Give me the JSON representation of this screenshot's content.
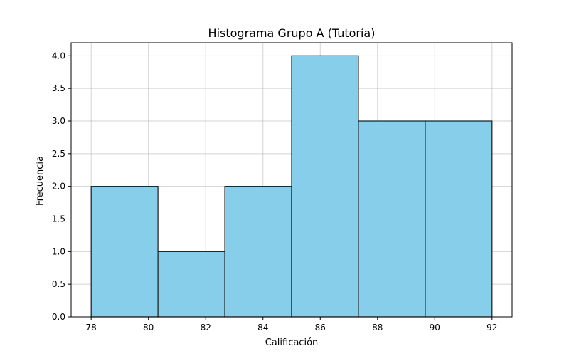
{
  "chart_data": {
    "type": "bar",
    "subtype": "histogram",
    "title": "Histograma Grupo A (Tutoría)",
    "xlabel": "Calificación",
    "ylabel": "Frecuencia",
    "bin_edges": [
      78,
      80.333,
      82.667,
      85,
      87.333,
      89.667,
      92
    ],
    "values": [
      2,
      1,
      2,
      4,
      3,
      3
    ],
    "xlim": [
      77.3,
      92.7
    ],
    "ylim": [
      0,
      4.2
    ],
    "x_ticks": [
      78,
      80,
      82,
      84,
      86,
      88,
      90,
      92
    ],
    "x_tick_labels": [
      "78",
      "80",
      "82",
      "84",
      "86",
      "88",
      "90",
      "92"
    ],
    "y_ticks": [
      0,
      0.5,
      1,
      1.5,
      2,
      2.5,
      3,
      3.5,
      4
    ],
    "y_tick_labels": [
      "0.0",
      "0.5",
      "1.0",
      "1.5",
      "2.0",
      "2.5",
      "3.0",
      "3.5",
      "4.0"
    ],
    "bar_color": "#87CEEB",
    "edge_color": "#1a1a1a",
    "grid": true,
    "legend": "none"
  }
}
